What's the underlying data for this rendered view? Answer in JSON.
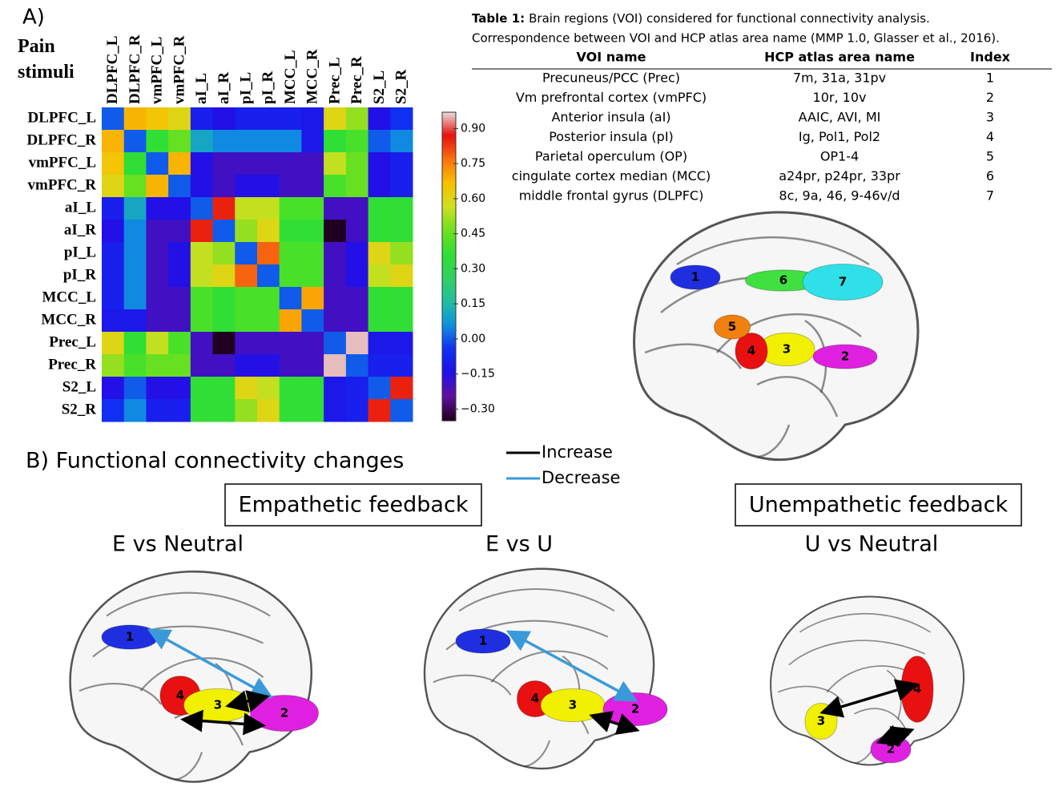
{
  "figure_label_a": "A)",
  "chart_data": {
    "type": "heatmap",
    "title": "Pain stimuli",
    "categories": [
      "DLPFC_L",
      "DLPFC_R",
      "vmPFC_L",
      "vmPFC_R",
      "aI_L",
      "aI_R",
      "pI_L",
      "pI_R",
      "MCC_L",
      "MCC_R",
      "Prec_L",
      "Prec_R",
      "S2_L",
      "S2_R"
    ],
    "values": [
      [
        0,
        0.68,
        0.65,
        0.6,
        -0.1,
        -0.15,
        -0.1,
        -0.1,
        -0.1,
        -0.12,
        0.6,
        0.5,
        -0.15,
        -0.05
      ],
      [
        0.68,
        0,
        0.35,
        0.45,
        0.1,
        0.05,
        0.05,
        0.05,
        0.05,
        -0.12,
        0.35,
        0.4,
        0,
        0.05
      ],
      [
        0.65,
        0.35,
        0,
        0.68,
        -0.15,
        -0.2,
        -0.2,
        -0.2,
        -0.2,
        -0.2,
        0.55,
        0.45,
        -0.15,
        -0.1
      ],
      [
        0.6,
        0.45,
        0.68,
        0,
        -0.15,
        -0.2,
        -0.15,
        -0.15,
        -0.2,
        -0.2,
        0.4,
        0.45,
        -0.15,
        -0.1
      ],
      [
        -0.1,
        0.1,
        -0.15,
        -0.15,
        0,
        0.85,
        0.55,
        0.55,
        0.4,
        0.4,
        -0.2,
        -0.2,
        0.35,
        0.35
      ],
      [
        -0.15,
        0.05,
        -0.2,
        -0.2,
        0.85,
        0,
        0.5,
        0.6,
        0.35,
        0.35,
        -0.4,
        -0.2,
        0.35,
        0.35
      ],
      [
        -0.1,
        0.05,
        -0.2,
        -0.15,
        0.55,
        0.5,
        0,
        0.78,
        0.4,
        0.4,
        -0.2,
        -0.15,
        0.6,
        0.5
      ],
      [
        -0.1,
        0.05,
        -0.2,
        -0.15,
        0.55,
        0.6,
        0.78,
        0,
        0.4,
        0.4,
        -0.2,
        -0.15,
        0.55,
        0.6
      ],
      [
        -0.1,
        0.05,
        -0.2,
        -0.2,
        0.4,
        0.35,
        0.4,
        0.4,
        0,
        0.7,
        -0.2,
        -0.2,
        0.35,
        0.35
      ],
      [
        -0.12,
        -0.12,
        -0.2,
        -0.2,
        0.4,
        0.35,
        0.4,
        0.4,
        0.7,
        0,
        -0.2,
        -0.2,
        0.35,
        0.35
      ],
      [
        0.6,
        0.35,
        0.55,
        0.4,
        -0.2,
        -0.4,
        -0.2,
        -0.2,
        -0.2,
        -0.2,
        0,
        0.95,
        -0.12,
        -0.12
      ],
      [
        0.5,
        0.4,
        0.45,
        0.45,
        -0.2,
        -0.2,
        -0.15,
        -0.15,
        -0.2,
        -0.2,
        0.95,
        0,
        -0.1,
        -0.1
      ],
      [
        -0.15,
        0,
        -0.15,
        -0.15,
        0.35,
        0.35,
        0.6,
        0.55,
        0.35,
        0.35,
        -0.12,
        -0.1,
        0,
        0.85
      ],
      [
        -0.05,
        0.05,
        -0.1,
        -0.1,
        0.35,
        0.35,
        0.5,
        0.6,
        0.35,
        0.35,
        -0.12,
        -0.1,
        0.85,
        0
      ]
    ],
    "colors": [
      "#200020",
      "#6010a0",
      "#2010e8",
      "#1030f0",
      "#1090e0",
      "#20c0a0",
      "#30d060",
      "#30e030",
      "#70e020",
      "#d0e020",
      "#f8c000",
      "#f87010",
      "#e81010",
      "#e8e8e8"
    ],
    "zlim": [
      -0.35,
      0.97
    ],
    "zticks": [
      {
        "value": 0.9,
        "label": "0.90"
      },
      {
        "value": 0.75,
        "label": "0.75"
      },
      {
        "value": 0.6,
        "label": "0.60"
      },
      {
        "value": 0.45,
        "label": "0.45"
      },
      {
        "value": 0.3,
        "label": "0.30"
      },
      {
        "value": 0.15,
        "label": "0.15"
      },
      {
        "value": 0,
        "label": "0.00"
      },
      {
        "value": -0.15,
        "label": "−0.15"
      },
      {
        "value": -0.3,
        "label": "−0.30"
      }
    ]
  },
  "table": {
    "caption_label": "Table 1:",
    "caption": "Brain regions (VOI) considered for functional connectivity analysis.",
    "caption_line2": "Correspondence between VOI and HCP atlas area name (MMP 1.0, Glasser et al., 2016).",
    "columns": [
      "VOI name",
      "HCP atlas area name",
      "Index"
    ],
    "rows": [
      [
        "Precuneus/PCC (Prec)",
        "7m, 31a, 31pv",
        "1"
      ],
      [
        "Vm prefrontal cortex (vmPFC)",
        "10r, 10v",
        "2"
      ],
      [
        "Anterior insula (aI)",
        "AAIC, AVI, MI",
        "3"
      ],
      [
        "Posterior insula (pI)",
        "Ig, Pol1, Pol2",
        "4"
      ],
      [
        "Parietal operculum (OP)",
        "OP1-4",
        "5"
      ],
      [
        "cingulate cortex median (MCC)",
        "a24pr, p24pr, 33pr",
        "6"
      ],
      [
        "middle frontal gyrus (DLPFC)",
        "8c, 9a, 46, 9-46v/d",
        "7"
      ]
    ]
  },
  "brain_regions": [
    "1",
    "2",
    "3",
    "4",
    "5",
    "6",
    "7"
  ],
  "panel_b": {
    "label": "B) Functional connectivity changes",
    "legend": [
      {
        "name": "Increase",
        "color": "#000000"
      },
      {
        "name": "Decrease",
        "color": "#3a9ad9"
      }
    ],
    "groups": [
      "Empathetic feedback",
      "Unempathetic feedback"
    ],
    "panels": [
      {
        "title": "E vs Neutral",
        "regions": [
          "1",
          "4",
          "3",
          "2"
        ]
      },
      {
        "title": "E vs U",
        "regions": [
          "1",
          "4",
          "3",
          "2"
        ]
      },
      {
        "title": "U vs Neutral",
        "regions": [
          "3",
          "4",
          "2"
        ]
      }
    ]
  }
}
